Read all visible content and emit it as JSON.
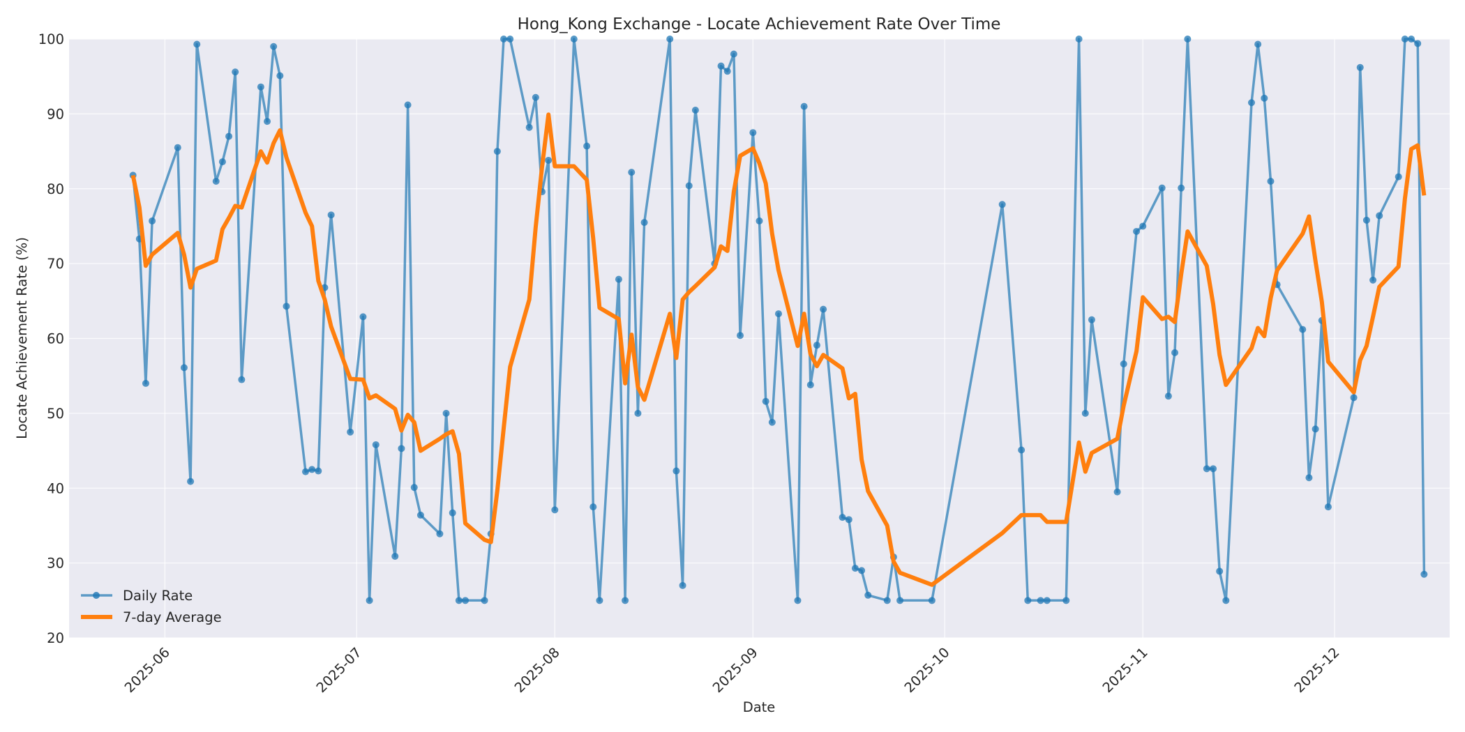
{
  "chart_data": {
    "type": "line",
    "title": "Hong_Kong Exchange - Locate Achievement Rate Over Time",
    "xlabel": "Date",
    "ylabel": "Locate Achievement Rate (%)",
    "ylim": [
      20,
      100
    ],
    "yticks": [
      20,
      30,
      40,
      50,
      60,
      70,
      80,
      90,
      100
    ],
    "xticks": [
      "2025-06",
      "2025-07",
      "2025-08",
      "2025-09",
      "2025-10",
      "2025-11",
      "2025-12"
    ],
    "xrange": [
      "2025-05-17",
      "2025-12-19"
    ],
    "grid": true,
    "legend_position": "lower left",
    "series": [
      {
        "name": "Daily Rate",
        "color": "#1f77b4",
        "marker": "circle",
        "points": [
          [
            "2025-05-27",
            81.8
          ],
          [
            "2025-05-28",
            73.3
          ],
          [
            "2025-05-29",
            54.0
          ],
          [
            "2025-05-30",
            75.7
          ],
          [
            "2025-06-03",
            85.5
          ],
          [
            "2025-06-04",
            56.1
          ],
          [
            "2025-06-05",
            40.9
          ],
          [
            "2025-06-06",
            99.3
          ],
          [
            "2025-06-09",
            81.0
          ],
          [
            "2025-06-10",
            83.6
          ],
          [
            "2025-06-11",
            87.0
          ],
          [
            "2025-06-12",
            95.6
          ],
          [
            "2025-06-13",
            54.5
          ],
          [
            "2025-06-16",
            93.6
          ],
          [
            "2025-06-17",
            89.0
          ],
          [
            "2025-06-18",
            99.0
          ],
          [
            "2025-06-19",
            95.1
          ],
          [
            "2025-06-20",
            64.3
          ],
          [
            "2025-06-23",
            42.2
          ],
          [
            "2025-06-24",
            42.5
          ],
          [
            "2025-06-25",
            42.3
          ],
          [
            "2025-06-26",
            66.8
          ],
          [
            "2025-06-27",
            76.5
          ],
          [
            "2025-06-30",
            47.5
          ],
          [
            "2025-07-02",
            62.9
          ],
          [
            "2025-07-03",
            25.0
          ],
          [
            "2025-07-04",
            45.8
          ],
          [
            "2025-07-07",
            30.9
          ],
          [
            "2025-07-08",
            45.3
          ],
          [
            "2025-07-09",
            91.2
          ],
          [
            "2025-07-10",
            40.1
          ],
          [
            "2025-07-11",
            36.4
          ],
          [
            "2025-07-14",
            33.9
          ],
          [
            "2025-07-15",
            50.0
          ],
          [
            "2025-07-16",
            36.7
          ],
          [
            "2025-07-17",
            25.0
          ],
          [
            "2025-07-18",
            25.0
          ],
          [
            "2025-07-21",
            25.0
          ],
          [
            "2025-07-22",
            33.9
          ],
          [
            "2025-07-23",
            85.0
          ],
          [
            "2025-07-24",
            100.0
          ],
          [
            "2025-07-25",
            100.0
          ],
          [
            "2025-07-28",
            88.2
          ],
          [
            "2025-07-29",
            92.2
          ],
          [
            "2025-07-30",
            79.6
          ],
          [
            "2025-07-31",
            83.8
          ],
          [
            "2025-08-01",
            37.1
          ],
          [
            "2025-08-04",
            100.0
          ],
          [
            "2025-08-06",
            85.7
          ],
          [
            "2025-08-07",
            37.5
          ],
          [
            "2025-08-08",
            25.0
          ],
          [
            "2025-08-11",
            67.9
          ],
          [
            "2025-08-12",
            25.0
          ],
          [
            "2025-08-13",
            82.2
          ],
          [
            "2025-08-14",
            50.0
          ],
          [
            "2025-08-15",
            75.5
          ],
          [
            "2025-08-19",
            100.0
          ],
          [
            "2025-08-20",
            42.3
          ],
          [
            "2025-08-21",
            27.0
          ],
          [
            "2025-08-22",
            80.4
          ],
          [
            "2025-08-23",
            90.5
          ],
          [
            "2025-08-26",
            70.0
          ],
          [
            "2025-08-27",
            96.4
          ],
          [
            "2025-08-28",
            95.7
          ],
          [
            "2025-08-29",
            98.0
          ],
          [
            "2025-08-30",
            60.4
          ],
          [
            "2025-09-01",
            87.5
          ],
          [
            "2025-09-02",
            75.7
          ],
          [
            "2025-09-03",
            51.6
          ],
          [
            "2025-09-04",
            48.8
          ],
          [
            "2025-09-05",
            63.3
          ],
          [
            "2025-09-08",
            25.0
          ],
          [
            "2025-09-09",
            91.0
          ],
          [
            "2025-09-10",
            53.8
          ],
          [
            "2025-09-11",
            59.1
          ],
          [
            "2025-09-12",
            63.9
          ],
          [
            "2025-09-15",
            36.1
          ],
          [
            "2025-09-16",
            35.8
          ],
          [
            "2025-09-17",
            29.3
          ],
          [
            "2025-09-18",
            29.0
          ],
          [
            "2025-09-19",
            25.7
          ],
          [
            "2025-09-22",
            25.0
          ],
          [
            "2025-09-23",
            30.8
          ],
          [
            "2025-09-24",
            25.0
          ],
          [
            "2025-09-29",
            25.0
          ],
          [
            "2025-10-10",
            77.9
          ],
          [
            "2025-10-13",
            45.1
          ],
          [
            "2025-10-14",
            25.0
          ],
          [
            "2025-10-16",
            25.0
          ],
          [
            "2025-10-17",
            25.0
          ],
          [
            "2025-10-20",
            25.0
          ],
          [
            "2025-10-22",
            100.0
          ],
          [
            "2025-10-23",
            50.0
          ],
          [
            "2025-10-24",
            62.5
          ],
          [
            "2025-10-28",
            39.5
          ],
          [
            "2025-10-29",
            56.6
          ],
          [
            "2025-10-31",
            74.3
          ],
          [
            "2025-11-01",
            75.0
          ],
          [
            "2025-11-04",
            80.1
          ],
          [
            "2025-11-05",
            52.3
          ],
          [
            "2025-11-06",
            58.1
          ],
          [
            "2025-11-07",
            80.1
          ],
          [
            "2025-11-08",
            100.0
          ],
          [
            "2025-11-11",
            42.6
          ],
          [
            "2025-11-12",
            42.6
          ],
          [
            "2025-11-13",
            28.9
          ],
          [
            "2025-11-14",
            25.0
          ],
          [
            "2025-11-18",
            91.5
          ],
          [
            "2025-11-19",
            99.3
          ],
          [
            "2025-11-20",
            92.1
          ],
          [
            "2025-11-21",
            81.0
          ],
          [
            "2025-11-22",
            67.2
          ],
          [
            "2025-11-26",
            61.2
          ],
          [
            "2025-11-27",
            41.4
          ],
          [
            "2025-11-28",
            47.9
          ],
          [
            "2025-11-29",
            62.4
          ],
          [
            "2025-11-30",
            37.5
          ],
          [
            "2025-12-04",
            52.1
          ],
          [
            "2025-12-05",
            96.2
          ],
          [
            "2025-12-06",
            75.8
          ],
          [
            "2025-12-07",
            67.8
          ],
          [
            "2025-12-08",
            76.4
          ],
          [
            "2025-12-11",
            81.6
          ],
          [
            "2025-12-12",
            100.0
          ],
          [
            "2025-12-13",
            100.0
          ],
          [
            "2025-12-14",
            99.4
          ],
          [
            "2025-12-15",
            28.5
          ]
        ]
      },
      {
        "name": "7-day Average",
        "color": "#ff7f0e",
        "marker": "none",
        "points": [
          [
            "2025-05-27",
            81.8
          ],
          [
            "2025-05-28",
            77.5
          ],
          [
            "2025-05-29",
            69.7
          ],
          [
            "2025-05-30",
            71.2
          ],
          [
            "2025-06-03",
            74.1
          ],
          [
            "2025-06-04",
            71.2
          ],
          [
            "2025-06-05",
            66.8
          ],
          [
            "2025-06-06",
            69.3
          ],
          [
            "2025-06-09",
            70.4
          ],
          [
            "2025-06-10",
            74.6
          ],
          [
            "2025-06-11",
            76.1
          ],
          [
            "2025-06-12",
            77.7
          ],
          [
            "2025-06-13",
            77.5
          ],
          [
            "2025-06-16",
            85.0
          ],
          [
            "2025-06-17",
            83.5
          ],
          [
            "2025-06-18",
            86.1
          ],
          [
            "2025-06-19",
            87.8
          ],
          [
            "2025-06-20",
            84.2
          ],
          [
            "2025-06-23",
            76.8
          ],
          [
            "2025-06-24",
            75.0
          ],
          [
            "2025-06-25",
            67.7
          ],
          [
            "2025-06-26",
            65.2
          ],
          [
            "2025-06-27",
            61.6
          ],
          [
            "2025-06-30",
            54.6
          ],
          [
            "2025-07-02",
            54.5
          ],
          [
            "2025-07-03",
            52.0
          ],
          [
            "2025-07-04",
            52.4
          ],
          [
            "2025-07-07",
            50.6
          ],
          [
            "2025-07-08",
            47.7
          ],
          [
            "2025-07-09",
            49.8
          ],
          [
            "2025-07-10",
            48.8
          ],
          [
            "2025-07-11",
            45.0
          ],
          [
            "2025-07-14",
            46.6
          ],
          [
            "2025-07-15",
            47.2
          ],
          [
            "2025-07-16",
            47.6
          ],
          [
            "2025-07-17",
            44.6
          ],
          [
            "2025-07-18",
            35.3
          ],
          [
            "2025-07-21",
            33.1
          ],
          [
            "2025-07-22",
            32.8
          ],
          [
            "2025-07-23",
            39.7
          ],
          [
            "2025-07-24",
            48.0
          ],
          [
            "2025-07-25",
            56.2
          ],
          [
            "2025-07-28",
            65.2
          ],
          [
            "2025-07-29",
            74.8
          ],
          [
            "2025-07-30",
            82.9
          ],
          [
            "2025-07-31",
            89.9
          ],
          [
            "2025-08-01",
            83.0
          ],
          [
            "2025-08-04",
            83.0
          ],
          [
            "2025-08-06",
            81.2
          ],
          [
            "2025-08-07",
            73.4
          ],
          [
            "2025-08-08",
            64.1
          ],
          [
            "2025-08-11",
            62.6
          ],
          [
            "2025-08-12",
            54.0
          ],
          [
            "2025-08-13",
            60.5
          ],
          [
            "2025-08-14",
            53.5
          ],
          [
            "2025-08-15",
            51.8
          ],
          [
            "2025-08-19",
            63.3
          ],
          [
            "2025-08-20",
            57.4
          ],
          [
            "2025-08-21",
            65.2
          ],
          [
            "2025-08-22",
            66.2
          ],
          [
            "2025-08-23",
            67.0
          ],
          [
            "2025-08-26",
            69.5
          ],
          [
            "2025-08-27",
            72.3
          ],
          [
            "2025-08-28",
            71.7
          ],
          [
            "2025-08-29",
            79.6
          ],
          [
            "2025-08-30",
            84.4
          ],
          [
            "2025-09-01",
            85.4
          ],
          [
            "2025-09-02",
            83.4
          ],
          [
            "2025-09-03",
            80.7
          ],
          [
            "2025-09-04",
            74.0
          ],
          [
            "2025-09-05",
            69.1
          ],
          [
            "2025-09-08",
            59.0
          ],
          [
            "2025-09-09",
            63.3
          ],
          [
            "2025-09-10",
            57.9
          ],
          [
            "2025-09-11",
            56.3
          ],
          [
            "2025-09-12",
            57.8
          ],
          [
            "2025-09-15",
            56.0
          ],
          [
            "2025-09-16",
            52.0
          ],
          [
            "2025-09-17",
            52.6
          ],
          [
            "2025-09-18",
            43.8
          ],
          [
            "2025-09-19",
            39.6
          ],
          [
            "2025-09-22",
            35.0
          ],
          [
            "2025-09-23",
            30.2
          ],
          [
            "2025-09-24",
            28.7
          ],
          [
            "2025-09-29",
            27.1
          ],
          [
            "2025-10-10",
            34.0
          ],
          [
            "2025-10-13",
            36.4
          ],
          [
            "2025-10-14",
            36.4
          ],
          [
            "2025-10-16",
            36.4
          ],
          [
            "2025-10-17",
            35.5
          ],
          [
            "2025-10-20",
            35.5
          ],
          [
            "2025-10-22",
            46.1
          ],
          [
            "2025-10-23",
            42.2
          ],
          [
            "2025-10-24",
            44.7
          ],
          [
            "2025-10-28",
            46.6
          ],
          [
            "2025-10-29",
            51.0
          ],
          [
            "2025-10-31",
            58.3
          ],
          [
            "2025-11-01",
            65.5
          ],
          [
            "2025-11-04",
            62.6
          ],
          [
            "2025-11-05",
            62.9
          ],
          [
            "2025-11-06",
            62.2
          ],
          [
            "2025-11-07",
            68.6
          ],
          [
            "2025-11-08",
            74.3
          ],
          [
            "2025-11-11",
            69.7
          ],
          [
            "2025-11-12",
            64.6
          ],
          [
            "2025-11-13",
            57.8
          ],
          [
            "2025-11-14",
            53.8
          ],
          [
            "2025-11-18",
            58.7
          ],
          [
            "2025-11-19",
            61.4
          ],
          [
            "2025-11-20",
            60.3
          ],
          [
            "2025-11-21",
            65.4
          ],
          [
            "2025-11-22",
            69.1
          ],
          [
            "2025-11-26",
            74.0
          ],
          [
            "2025-11-27",
            76.3
          ],
          [
            "2025-11-28",
            70.4
          ],
          [
            "2025-11-29",
            64.9
          ],
          [
            "2025-11-30",
            56.9
          ],
          [
            "2025-12-04",
            52.8
          ],
          [
            "2025-12-05",
            57.1
          ],
          [
            "2025-12-06",
            59.0
          ],
          [
            "2025-12-07",
            62.9
          ],
          [
            "2025-12-08",
            66.9
          ],
          [
            "2025-12-11",
            69.6
          ],
          [
            "2025-12-12",
            78.7
          ],
          [
            "2025-12-13",
            85.3
          ],
          [
            "2025-12-14",
            85.8
          ],
          [
            "2025-12-15",
            79.1
          ]
        ]
      }
    ]
  },
  "legend": {
    "daily_label": "Daily Rate",
    "avg_label": "7-day Average"
  },
  "colors": {
    "plot_bg": "#eaeaf2",
    "grid": "#ffffff",
    "daily": "#1f77b4",
    "avg": "#ff7f0e"
  }
}
